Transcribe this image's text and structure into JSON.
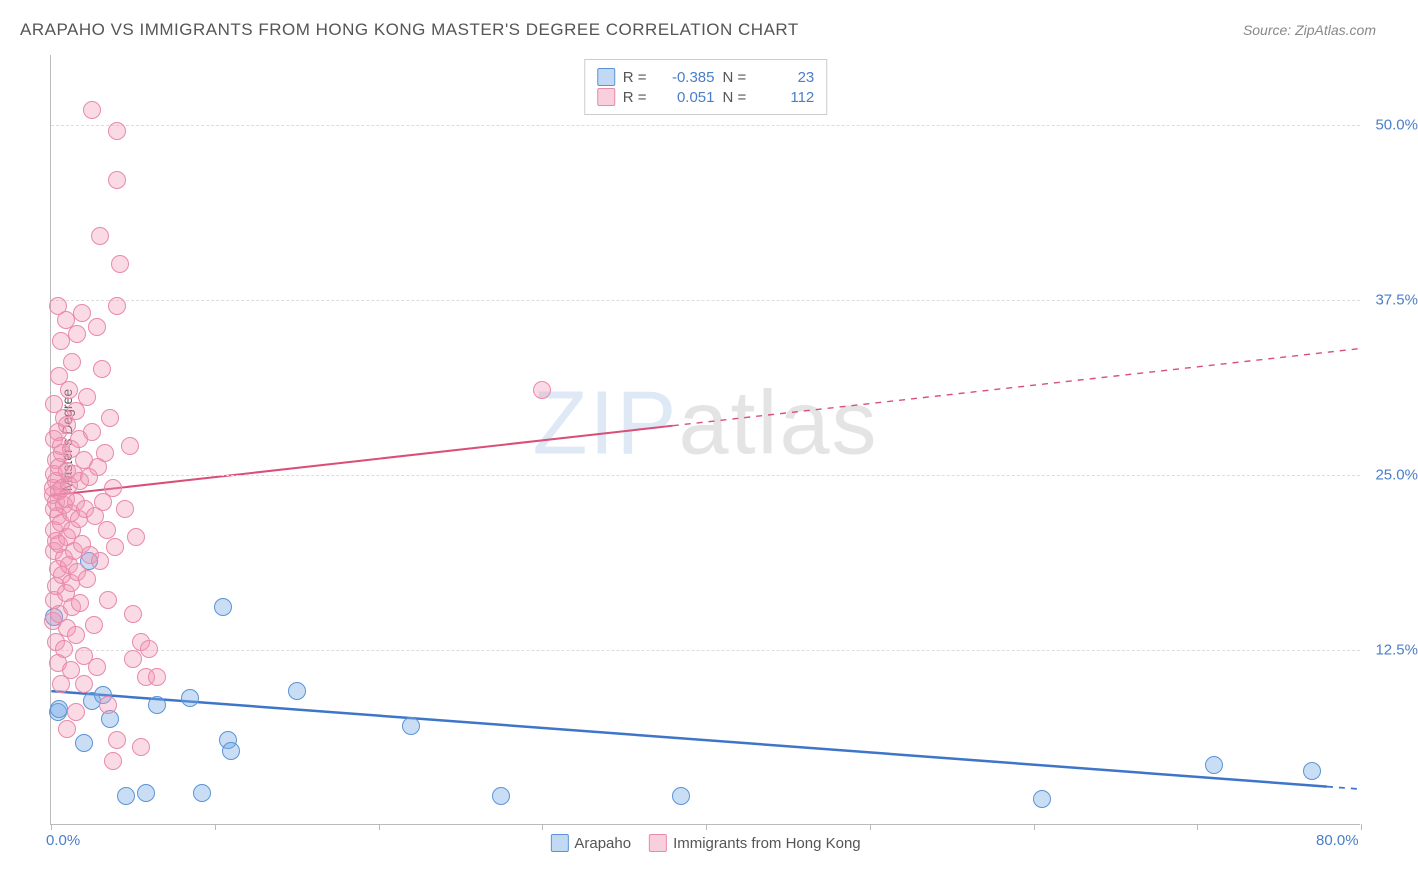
{
  "header": {
    "title": "ARAPAHO VS IMMIGRANTS FROM HONG KONG MASTER'S DEGREE CORRELATION CHART",
    "source": "Source: ZipAtlas.com"
  },
  "watermark": {
    "part1": "ZIP",
    "part2": "atlas"
  },
  "chart": {
    "type": "scatter",
    "x_axis": {
      "min": 0,
      "max": 80,
      "ticks": [
        0,
        80
      ],
      "tick_labels": [
        "0.0%",
        "80.0%"
      ],
      "minor_tick_step": 10
    },
    "y_axis": {
      "title": "Master's Degree",
      "min": 0,
      "max": 55,
      "ticks": [
        12.5,
        25.0,
        37.5,
        50.0
      ],
      "tick_labels": [
        "12.5%",
        "25.0%",
        "37.5%",
        "50.0%"
      ]
    },
    "grid_color": "#dddddd",
    "background_color": "#ffffff",
    "axis_color": "#bbbbbb",
    "tick_label_color": "#4a7ec9",
    "tick_fontsize": 15,
    "marker_size": 18,
    "series": [
      {
        "name": "Arapaho",
        "color_fill": "rgba(120,170,230,0.40)",
        "color_stroke": "#5a94d6",
        "R": "-0.385",
        "N": "23",
        "trend": {
          "x1": 0,
          "y1": 9.5,
          "x2": 80,
          "y2": 2.5,
          "solid_until_x": 78,
          "color": "#3d76c8",
          "width": 2.5
        },
        "points": [
          [
            0.2,
            14.8
          ],
          [
            0.4,
            8.0
          ],
          [
            0.5,
            8.2
          ],
          [
            2.0,
            5.8
          ],
          [
            2.3,
            18.8
          ],
          [
            2.5,
            8.8
          ],
          [
            3.2,
            9.2
          ],
          [
            3.6,
            7.5
          ],
          [
            4.6,
            2.0
          ],
          [
            5.8,
            2.2
          ],
          [
            6.5,
            8.5
          ],
          [
            8.5,
            9.0
          ],
          [
            9.2,
            2.2
          ],
          [
            10.5,
            15.5
          ],
          [
            10.8,
            6.0
          ],
          [
            11.0,
            5.2
          ],
          [
            15.0,
            9.5
          ],
          [
            22.0,
            7.0
          ],
          [
            27.5,
            2.0
          ],
          [
            38.5,
            2.0
          ],
          [
            60.5,
            1.8
          ],
          [
            71.0,
            4.2
          ],
          [
            77.0,
            3.8
          ]
        ]
      },
      {
        "name": "Immigrants from Hong Kong",
        "color_fill": "rgba(240,150,180,0.35)",
        "color_stroke": "#e88aa8",
        "R": "0.051",
        "N": "112",
        "trend": {
          "x1": 0,
          "y1": 23.5,
          "x2": 80,
          "y2": 34.0,
          "solid_until_x": 38,
          "color": "#d94f78",
          "width": 2
        },
        "points": [
          [
            0.1,
            14.5
          ],
          [
            0.1,
            23.5
          ],
          [
            0.1,
            24.0
          ],
          [
            0.2,
            16.0
          ],
          [
            0.2,
            19.5
          ],
          [
            0.2,
            21.0
          ],
          [
            0.2,
            22.5
          ],
          [
            0.2,
            25.0
          ],
          [
            0.2,
            27.5
          ],
          [
            0.2,
            30.0
          ],
          [
            0.3,
            13.0
          ],
          [
            0.3,
            17.0
          ],
          [
            0.3,
            20.2
          ],
          [
            0.3,
            23.0
          ],
          [
            0.3,
            24.5
          ],
          [
            0.3,
            26.0
          ],
          [
            0.4,
            11.5
          ],
          [
            0.4,
            18.2
          ],
          [
            0.4,
            22.0
          ],
          [
            0.4,
            28.0
          ],
          [
            0.5,
            15.0
          ],
          [
            0.5,
            20.0
          ],
          [
            0.5,
            23.8
          ],
          [
            0.5,
            25.5
          ],
          [
            0.5,
            32.0
          ],
          [
            0.6,
            10.0
          ],
          [
            0.6,
            21.5
          ],
          [
            0.6,
            27.0
          ],
          [
            0.6,
            34.5
          ],
          [
            0.7,
            17.8
          ],
          [
            0.7,
            24.0
          ],
          [
            0.7,
            26.5
          ],
          [
            0.8,
            12.5
          ],
          [
            0.8,
            19.0
          ],
          [
            0.8,
            22.8
          ],
          [
            0.8,
            29.0
          ],
          [
            0.9,
            16.5
          ],
          [
            0.9,
            23.2
          ],
          [
            0.9,
            36.0
          ],
          [
            1.0,
            14.0
          ],
          [
            1.0,
            20.5
          ],
          [
            1.0,
            25.2
          ],
          [
            1.0,
            28.5
          ],
          [
            1.1,
            18.5
          ],
          [
            1.1,
            24.2
          ],
          [
            1.1,
            31.0
          ],
          [
            1.2,
            11.0
          ],
          [
            1.2,
            17.2
          ],
          [
            1.2,
            22.2
          ],
          [
            1.2,
            26.8
          ],
          [
            1.3,
            15.5
          ],
          [
            1.3,
            21.0
          ],
          [
            1.3,
            33.0
          ],
          [
            1.4,
            19.5
          ],
          [
            1.4,
            25.0
          ],
          [
            1.5,
            13.5
          ],
          [
            1.5,
            23.0
          ],
          [
            1.5,
            29.5
          ],
          [
            1.6,
            18.0
          ],
          [
            1.6,
            35.0
          ],
          [
            1.7,
            21.8
          ],
          [
            1.7,
            27.5
          ],
          [
            1.8,
            15.8
          ],
          [
            1.8,
            24.5
          ],
          [
            1.9,
            20.0
          ],
          [
            1.9,
            36.5
          ],
          [
            2.0,
            12.0
          ],
          [
            2.0,
            26.0
          ],
          [
            2.1,
            22.5
          ],
          [
            2.2,
            17.5
          ],
          [
            2.2,
            30.5
          ],
          [
            2.3,
            24.8
          ],
          [
            2.4,
            19.2
          ],
          [
            2.5,
            28.0
          ],
          [
            2.6,
            14.2
          ],
          [
            2.7,
            22.0
          ],
          [
            2.8,
            35.5
          ],
          [
            2.9,
            25.5
          ],
          [
            3.0,
            18.8
          ],
          [
            3.1,
            32.5
          ],
          [
            3.2,
            23.0
          ],
          [
            3.3,
            26.5
          ],
          [
            3.4,
            21.0
          ],
          [
            3.5,
            16.0
          ],
          [
            3.6,
            29.0
          ],
          [
            3.8,
            24.0
          ],
          [
            3.9,
            19.8
          ],
          [
            4.0,
            37.0
          ],
          [
            4.0,
            46.0
          ],
          [
            4.0,
            49.5
          ],
          [
            2.5,
            51.0
          ],
          [
            3.0,
            42.0
          ],
          [
            4.2,
            40.0
          ],
          [
            4.5,
            22.5
          ],
          [
            4.8,
            27.0
          ],
          [
            5.0,
            11.8
          ],
          [
            5.0,
            15.0
          ],
          [
            5.2,
            20.5
          ],
          [
            5.5,
            13.0
          ],
          [
            5.8,
            10.5
          ],
          [
            6.0,
            12.5
          ],
          [
            4.0,
            6.0
          ],
          [
            3.5,
            8.5
          ],
          [
            3.8,
            4.5
          ],
          [
            5.5,
            5.5
          ],
          [
            6.5,
            10.5
          ],
          [
            1.0,
            6.8
          ],
          [
            1.5,
            8.0
          ],
          [
            2.0,
            10.0
          ],
          [
            2.8,
            11.2
          ],
          [
            30.0,
            31.0
          ],
          [
            0.4,
            37.0
          ]
        ]
      }
    ]
  },
  "legend_bottom": {
    "items": [
      {
        "label": "Arapaho",
        "swatch": "blue"
      },
      {
        "label": "Immigrants from Hong Kong",
        "swatch": "pink"
      }
    ]
  },
  "legend_top_labels": {
    "R": "R =",
    "N": "N ="
  }
}
